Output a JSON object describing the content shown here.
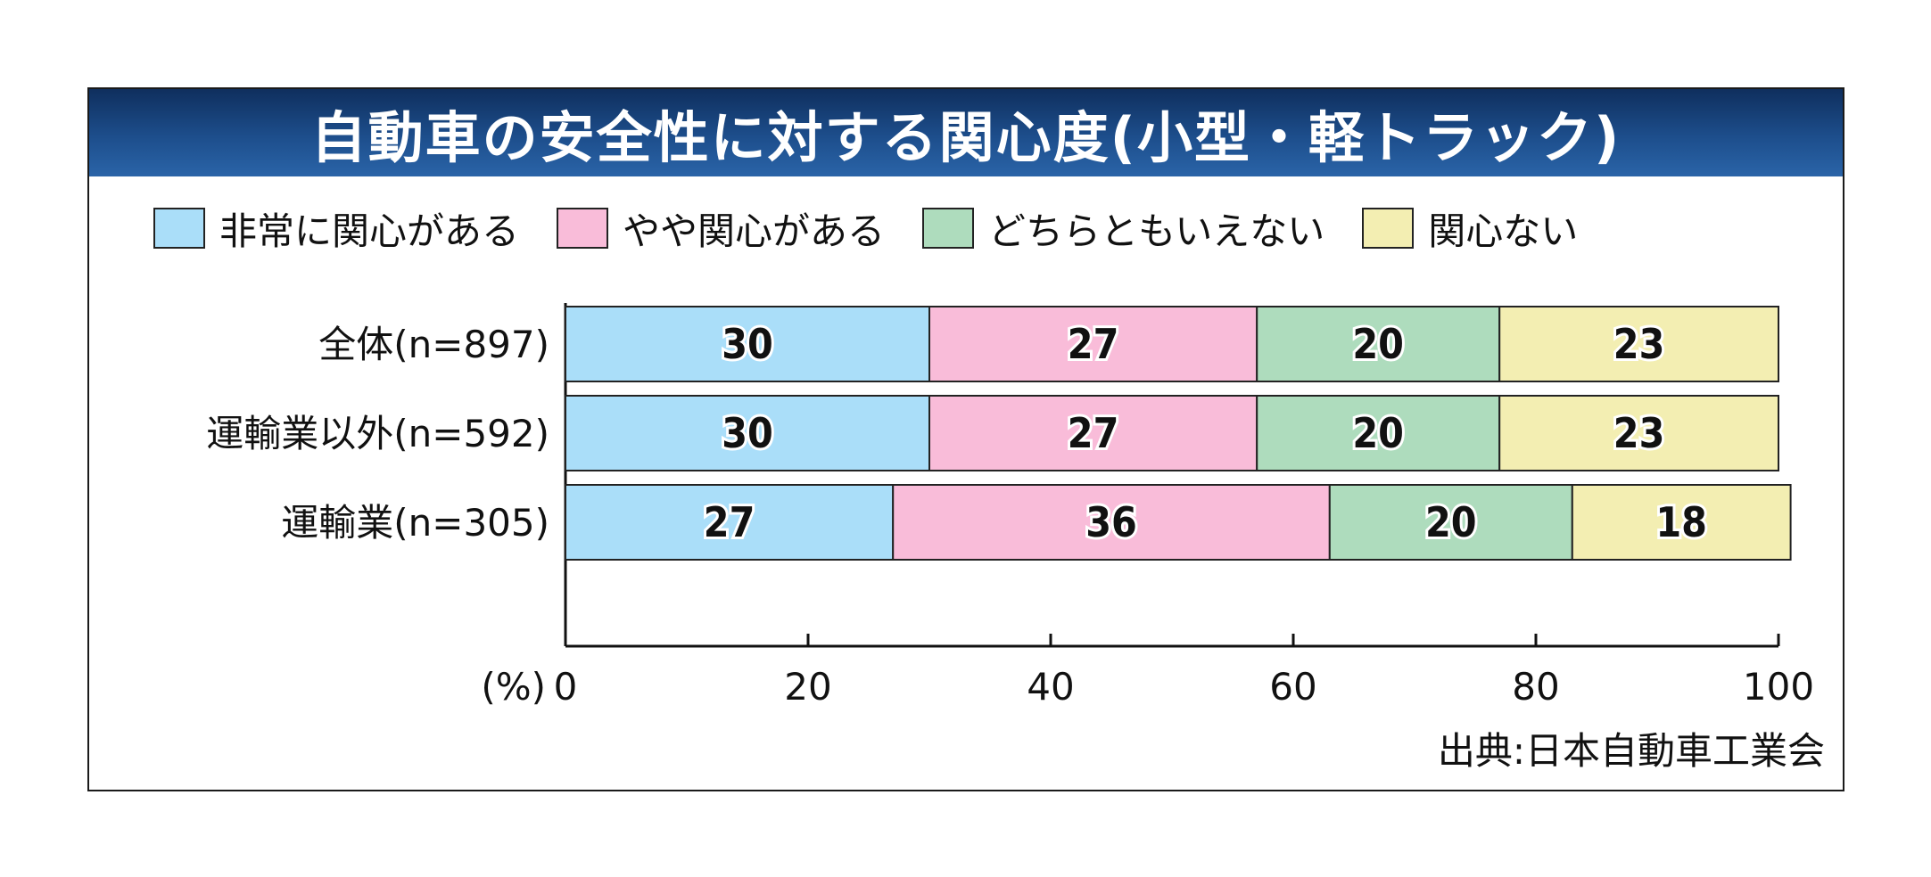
{
  "chart_data": {
    "type": "bar",
    "orientation": "horizontal",
    "stacked": true,
    "title": "自動車の安全性に対する関心度(小型・軽トラック)",
    "categories": [
      "全体(n=897)",
      "運輸業以外(n=592)",
      "運輸業(n=305)"
    ],
    "series": [
      {
        "name": "非常に関心がある",
        "color": "#aadef9",
        "values": [
          30,
          30,
          27
        ]
      },
      {
        "name": "やや関心がある",
        "color": "#f9bcd9",
        "values": [
          27,
          27,
          36
        ]
      },
      {
        "name": "どちらともいえない",
        "color": "#aedcbd",
        "values": [
          20,
          20,
          20
        ]
      },
      {
        "name": "関心ない",
        "color": "#f3eeb2",
        "values": [
          23,
          23,
          18
        ]
      }
    ],
    "xlabel": "(%)",
    "xlim": [
      0,
      100
    ],
    "xticks": [
      0,
      20,
      40,
      60,
      80,
      100
    ],
    "legend_position": "top",
    "grid": false
  },
  "source": "出典:日本自動車工業会"
}
